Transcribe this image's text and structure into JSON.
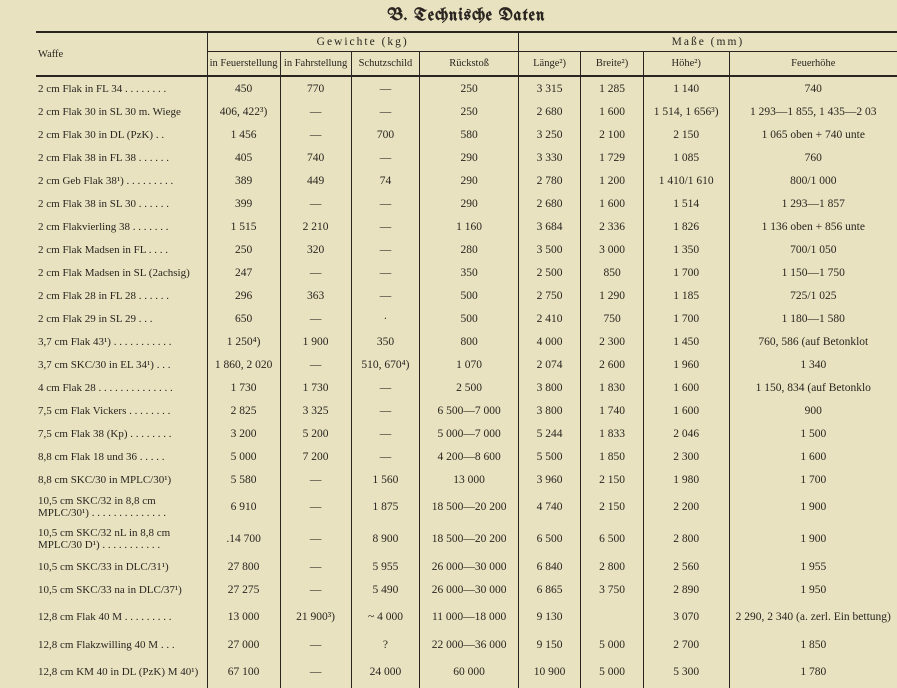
{
  "title": "B. Technische Daten",
  "headers": {
    "waffe": "Waffe",
    "gewichte": "Gewichte (kg)",
    "masse": "Maße (mm)",
    "feuerstellung": "in Feuerstellung",
    "fahrstellung": "in Fahrstellung",
    "schutzschild": "Schutzschild",
    "ruckstoss": "Rückstoß",
    "lange": "Länge²)",
    "breite": "Breite²)",
    "hohe": "Höhe²)",
    "feuerhohe": "Feuerhöhe"
  },
  "rows": [
    {
      "w": "2 cm Flak in FL 34 . . . . . . . .",
      "f": "450",
      "fa": "770",
      "s": "—",
      "r": "250",
      "l": "3 315",
      "b": "1 285",
      "h": "1 140",
      "fh": "740"
    },
    {
      "w": "2 cm Flak 30 in SL 30 m. Wiege",
      "f": "406, 422³)",
      "fa": "—",
      "s": "—",
      "r": "250",
      "l": "2 680",
      "b": "1 600",
      "h": "1 514, 1 656³)",
      "fh": "1 293—1 855, 1 435—2 03"
    },
    {
      "w": "2 cm Flak 30 in DL (PzK) . .",
      "f": "1 456",
      "fa": "—",
      "s": "700",
      "r": "580",
      "l": "3 250",
      "b": "2 100",
      "h": "2 150",
      "fh": "1 065 oben + 740 unte"
    },
    {
      "w": "2 cm Flak 38 in FL 38 . . . . . .",
      "f": "405",
      "fa": "740",
      "s": "—",
      "r": "290",
      "l": "3 330",
      "b": "1 729",
      "h": "1 085",
      "fh": "760"
    },
    {
      "w": "2 cm Geb Flak 38¹) . . . . . . . . .",
      "f": "389",
      "fa": "449",
      "s": "74",
      "r": "290",
      "l": "2 780",
      "b": "1 200",
      "h": "1 410/1 610",
      "fh": "800/1 000"
    },
    {
      "w": "2 cm Flak 38 in SL 30 . . . . . .",
      "f": "399",
      "fa": "—",
      "s": "—",
      "r": "290",
      "l": "2 680",
      "b": "1 600",
      "h": "1 514",
      "fh": "1 293—1 857"
    },
    {
      "w": "2 cm Flakvierling 38 . . . . . . .",
      "f": "1 515",
      "fa": "2 210",
      "s": "—",
      "r": "1 160",
      "l": "3 684",
      "b": "2 336",
      "h": "1 826",
      "fh": "1 136 oben + 856 unte"
    },
    {
      "w": "2 cm Flak Madsen in FL . . . .",
      "f": "250",
      "fa": "320",
      "s": "—",
      "r": "280",
      "l": "3 500",
      "b": "3 000",
      "h": "1 350",
      "fh": "700/1 050"
    },
    {
      "w": "2 cm Flak Madsen in SL (2achsig)",
      "f": "247",
      "fa": "—",
      "s": "—",
      "r": "350",
      "l": "2 500",
      "b": "850",
      "h": "1 700",
      "fh": "1 150—1 750"
    },
    {
      "w": "2 cm Flak 28 in FL 28 . . . . . .",
      "f": "296",
      "fa": "363",
      "s": "—",
      "r": "500",
      "l": "2 750",
      "b": "1 290",
      "h": "1 185",
      "fh": "725/1 025"
    },
    {
      "w": "2 cm Flak 29 in SL 29 . . .",
      "f": "650",
      "fa": "—",
      "s": "·",
      "r": "500",
      "l": "2 410",
      "b": "750",
      "h": "1 700",
      "fh": "1 180—1 580"
    },
    {
      "w": "3,7 cm Flak 43¹) . . . . . . . . . . .",
      "f": "1 250⁴)",
      "fa": "1 900",
      "s": "350",
      "r": "800",
      "l": "4 000",
      "b": "2 300",
      "h": "1 450",
      "fh": "760, 586 (auf Betonklot"
    },
    {
      "w": "3,7 cm SKC/30 in EL 34¹) . . .",
      "f": "1 860, 2 020",
      "fa": "—",
      "s": "510, 670⁴)",
      "r": "1 070",
      "l": "2 074",
      "b": "2 600",
      "h": "1 960",
      "fh": "1 340"
    },
    {
      "w": "4 cm Flak 28 . . . . . . . . . . . . . .",
      "f": "1 730",
      "fa": "1 730",
      "s": "—",
      "r": "2 500",
      "l": "3 800",
      "b": "1 830",
      "h": "1 600",
      "fh": "1 150, 834 (auf Betonklo"
    },
    {
      "w": "7,5 cm Flak Vickers . . . . . . . .",
      "f": "2 825",
      "fa": "3 325",
      "s": "—",
      "r": "6 500—7 000",
      "l": "3 800",
      "b": "1 740",
      "h": "1 600",
      "fh": "900"
    },
    {
      "w": "7,5 cm Flak 38 (Kp) . . . . . . . .",
      "f": "3 200",
      "fa": "5 200",
      "s": "—",
      "r": "5 000—7 000",
      "l": "5 244",
      "b": "1 833",
      "h": "2 046",
      "fh": "1 500"
    },
    {
      "w": "8,8 cm Flak 18 und 36 . . . . .",
      "f": "5 000",
      "fa": "7 200",
      "s": "—",
      "r": "4 200—8 600",
      "l": "5 500",
      "b": "1 850",
      "h": "2 300",
      "fh": "1 600"
    },
    {
      "w": "8,8 cm SKC/30 in MPLC/30¹)",
      "f": "5 580",
      "fa": "—",
      "s": "1 560",
      "r": "13 000",
      "l": "3 960",
      "b": "2 150",
      "h": "1 980",
      "fh": "1 700"
    },
    {
      "w": "10,5 cm SKC/32 in 8,8 cm MPLC/30¹) . . . . . . . . . . . . . .",
      "f": "6 910",
      "fa": "—",
      "s": "1 875",
      "r": "18 500—20 200",
      "l": "4 740",
      "b": "2 150",
      "h": "2 200",
      "fh": "1 900",
      "tall": true
    },
    {
      "w": "10,5 cm SKC/32 nL in 8,8 cm MPLC/30 D¹) . . . . . . . . . . .",
      "f": ".14 700",
      "fa": "—",
      "s": "8 900",
      "r": "18 500—20 200",
      "l": "6 500",
      "b": "6 500",
      "h": "2 800",
      "fh": "1 900",
      "tall": true
    },
    {
      "w": "10,5 cm SKC/33 in DLC/31¹)",
      "f": "27 800",
      "fa": "—",
      "s": "5 955",
      "r": "26 000—30 000",
      "l": "6 840",
      "b": "2 800",
      "h": "2 560",
      "fh": "1 955"
    },
    {
      "w": "10,5 cm SKC/33 na in DLC/37¹)",
      "f": "27 275",
      "fa": "—",
      "s": "5 490",
      "r": "26 000—30 000",
      "l": "6 865",
      "b": "3 750",
      "h": "2 890",
      "fh": "1 950"
    },
    {
      "w": "12,8 cm Flak 40 M . . . . . . . . .",
      "f": "13 000",
      "fa": "21 900³)",
      "s": "~ 4 000",
      "r": "11 000—18 000",
      "l": "9 130",
      "b": "",
      "h": "3 070",
      "fh": "2 290, 2 340 (a. zerl. Ein bettung)",
      "tall": true
    },
    {
      "w": "12,8 cm Flakzwilling 40 M . . .",
      "f": "27 000",
      "fa": "—",
      "s": "?",
      "r": "22 000—36 000",
      "l": "9 150",
      "b": "5 000",
      "h": "2 700",
      "fh": "1 850"
    },
    {
      "w": "12,8 cm KM 40 in DL (PzK) M 40¹)",
      "f": "67 100",
      "fa": "—",
      "s": "24 000",
      "r": "60 000",
      "l": "10 900",
      "b": "5 000",
      "h": "5 300",
      "fh": "1 780",
      "tall": true
    }
  ]
}
